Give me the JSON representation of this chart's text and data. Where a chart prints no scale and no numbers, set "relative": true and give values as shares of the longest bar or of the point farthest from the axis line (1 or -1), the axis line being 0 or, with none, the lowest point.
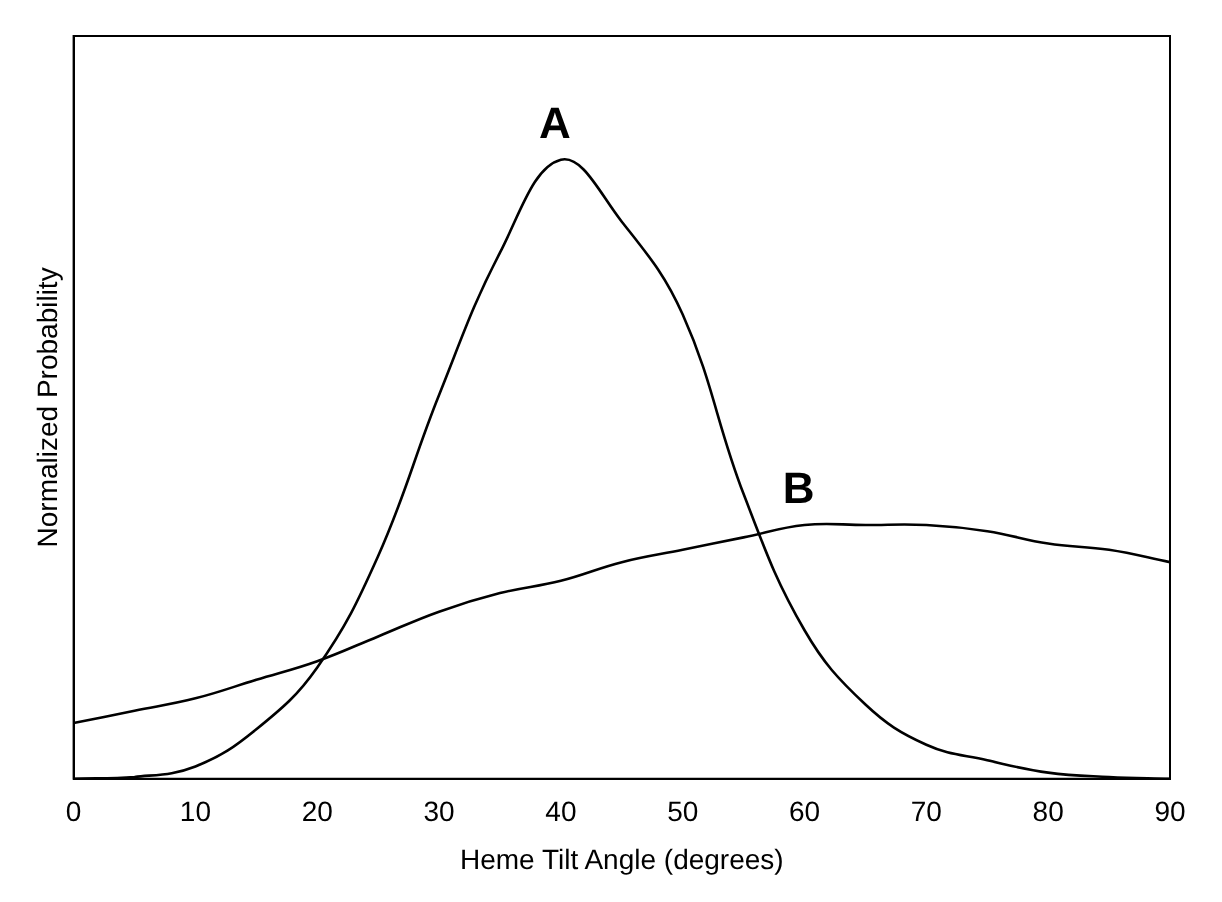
{
  "chart_data": {
    "type": "line",
    "relative": true,
    "xlabel": "Heme Tilt Angle (degrees)",
    "ylabel": "Normalized Probability",
    "xlim": [
      0,
      90
    ],
    "xticks": [
      0,
      10,
      20,
      30,
      40,
      50,
      60,
      70,
      80,
      90
    ],
    "grid": false,
    "legend": false,
    "marker": "none",
    "line_style": "solid",
    "x": [
      0,
      5,
      10,
      15,
      20,
      25,
      30,
      35,
      40,
      45,
      50,
      55,
      60,
      65,
      70,
      75,
      80,
      85,
      90
    ],
    "series": [
      {
        "name": "A",
        "color": "#000000",
        "values": [
          0,
          0.003,
          0.02,
          0.08,
          0.18,
          0.36,
          0.62,
          0.85,
          1,
          0.9,
          0.75,
          0.46,
          0.24,
          0.12,
          0.055,
          0.03,
          0.01,
          0.003,
          0
        ]
      },
      {
        "name": "B",
        "color": "#000000",
        "values": [
          0.09,
          0.11,
          0.13,
          0.16,
          0.19,
          0.23,
          0.27,
          0.3,
          0.32,
          0.35,
          0.37,
          0.39,
          0.41,
          0.41,
          0.41,
          0.4,
          0.38,
          0.37,
          0.35
        ]
      }
    ]
  }
}
